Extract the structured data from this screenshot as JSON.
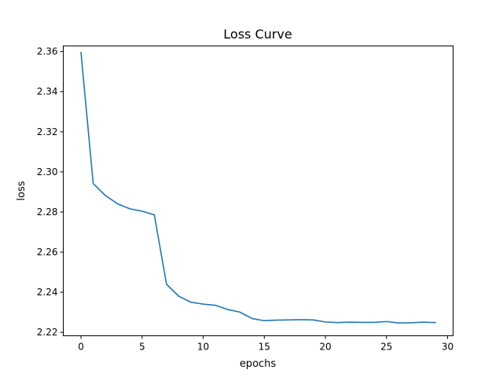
{
  "chart_data": {
    "type": "line",
    "title": "Loss Curve",
    "xlabel": "epochs",
    "ylabel": "loss",
    "xlim": [
      -1.45,
      30.45
    ],
    "ylim": [
      2.2183,
      2.3628
    ],
    "x_ticks": [
      0,
      5,
      10,
      15,
      20,
      25,
      30
    ],
    "y_ticks": [
      2.22,
      2.24,
      2.26,
      2.28,
      2.3,
      2.32,
      2.34,
      2.36
    ],
    "grid": false,
    "series": [
      {
        "color": "#1f77b4",
        "x": [
          0,
          1,
          2,
          3,
          4,
          5,
          6,
          7,
          8,
          9,
          10,
          11,
          12,
          13,
          14,
          15,
          16,
          17,
          18,
          19,
          20,
          21,
          22,
          23,
          24,
          25,
          26,
          27,
          28,
          29
        ],
        "values": [
          2.3595,
          2.2942,
          2.2882,
          2.2841,
          2.2816,
          2.2804,
          2.2786,
          2.244,
          2.238,
          2.235,
          2.2341,
          2.2335,
          2.2314,
          2.2301,
          2.2269,
          2.2258,
          2.2261,
          2.2262,
          2.2263,
          2.2262,
          2.2252,
          2.2249,
          2.2251,
          2.225,
          2.225,
          2.2254,
          2.2247,
          2.2248,
          2.2251,
          2.2249
        ]
      }
    ]
  }
}
